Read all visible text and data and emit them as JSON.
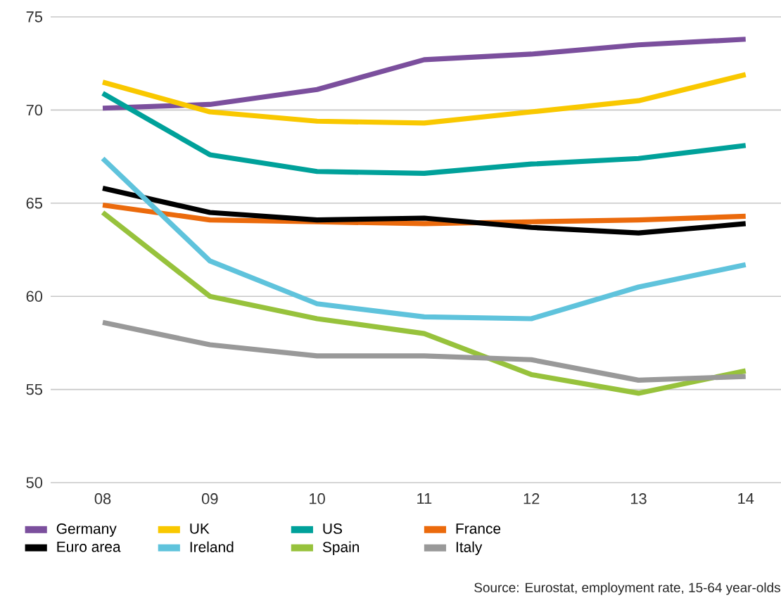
{
  "chart_data": {
    "type": "line",
    "categories": [
      "08",
      "09",
      "10",
      "11",
      "12",
      "13",
      "14"
    ],
    "series": [
      {
        "name": "Germany",
        "color": "#7b4f9d",
        "values": [
          70.1,
          70.3,
          71.1,
          72.7,
          73.0,
          73.5,
          73.8
        ]
      },
      {
        "name": "UK",
        "color": "#f9c800",
        "values": [
          71.5,
          69.9,
          69.4,
          69.3,
          69.9,
          70.5,
          71.9
        ]
      },
      {
        "name": "US",
        "color": "#00a19a",
        "values": [
          70.9,
          67.6,
          66.7,
          66.6,
          67.1,
          67.4,
          68.1
        ]
      },
      {
        "name": "France",
        "color": "#eb6a0c",
        "values": [
          64.9,
          64.1,
          64.0,
          63.9,
          64.0,
          64.1,
          64.3
        ]
      },
      {
        "name": "Euro area",
        "color": "#000000",
        "values": [
          65.8,
          64.5,
          64.1,
          64.2,
          63.7,
          63.4,
          63.9
        ]
      },
      {
        "name": "Ireland",
        "color": "#5fc3dc",
        "values": [
          67.4,
          61.9,
          59.6,
          58.9,
          58.8,
          60.5,
          61.7
        ]
      },
      {
        "name": "Spain",
        "color": "#97c23c",
        "values": [
          64.5,
          60.0,
          58.8,
          58.0,
          55.8,
          54.8,
          56.0
        ]
      },
      {
        "name": "Italy",
        "color": "#999999",
        "values": [
          58.6,
          57.4,
          56.8,
          56.8,
          56.6,
          55.5,
          55.7
        ]
      }
    ],
    "ylim": [
      50,
      75
    ],
    "yticks": [
      50,
      55,
      60,
      65,
      70,
      75
    ],
    "grid": "y",
    "legend": "bottom",
    "marker": "none",
    "line_style": "solid",
    "annotations": [
      "Source: Eurostat, employment rate, 15-64 year-olds"
    ]
  }
}
